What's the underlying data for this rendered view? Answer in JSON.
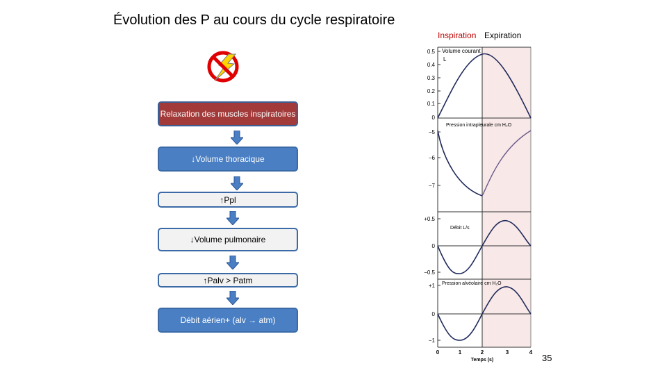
{
  "slide": {
    "title": "Évolution des P au cours du cycle respiratoire",
    "page_number": "35"
  },
  "flow": {
    "steps": [
      {
        "label": "Relaxation des muscles inspiratoires"
      },
      {
        "label": "↓Volume  thoracique"
      },
      {
        "label": "↑Ppl"
      },
      {
        "label": "↓Volume  pulmonaire"
      },
      {
        "label": "↑Palv > Patm"
      },
      {
        "label": "Débit aérien+ (alv → atm)"
      }
    ]
  },
  "figure": {
    "legend_inspiration": "Inspiration",
    "legend_expiration": "Expiration",
    "xlabel": "Temps (s)",
    "x_ticks": [
      "0",
      "1",
      "2",
      "3",
      "4"
    ],
    "panels": [
      {
        "label": "Volume courant",
        "unit": "L",
        "ticks": [
          "0.5",
          "0.4",
          "0.3",
          "0.2",
          "0.1",
          "0"
        ]
      },
      {
        "label": "Pression intrapleurale cm H₂O",
        "ticks": [
          "−5",
          "−6",
          "−7"
        ]
      },
      {
        "label": "Débit L/s",
        "ticks": [
          "+0.5",
          "0",
          "−0.5"
        ]
      },
      {
        "label": "Pression alvéolaire cm H₂O",
        "ticks": [
          "+1",
          "0",
          "−1"
        ]
      }
    ],
    "colors": {
      "curve": "#1f2a5a",
      "expiration_shade": "#f9e8e8",
      "inspiration_text": "#c00000"
    }
  }
}
